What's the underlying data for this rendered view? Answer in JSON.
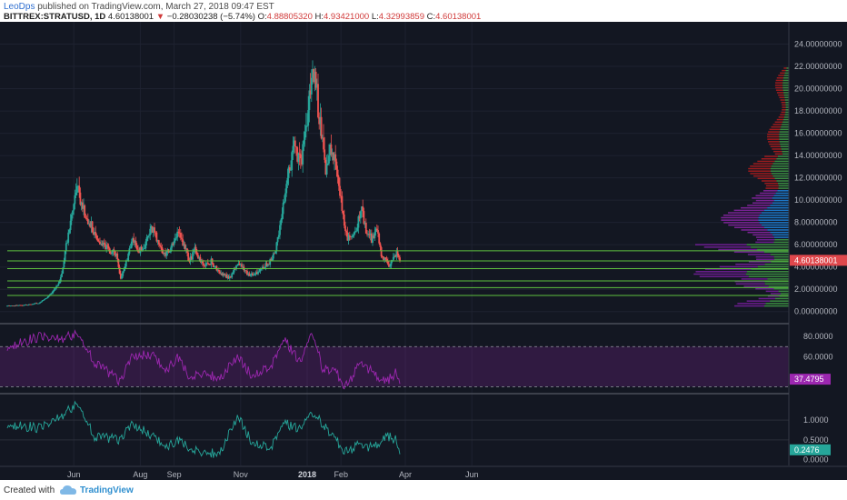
{
  "header": {
    "author": "LeoDps",
    "published": "published on TradingView.com, March 27, 2018 09:47 EST",
    "symbol": "BITTREX:STRATUSD, 1D",
    "last": "4.60138001",
    "arrow": "▼",
    "change": "−0.28030238 (−5.74%)",
    "o_label": "O:",
    "o": "4.88805320",
    "h_label": "H:",
    "h": "4.93421000",
    "l_label": "L:",
    "l": "4.32993859",
    "c_label": "C:",
    "c": "4.60138001"
  },
  "footer": {
    "created_with": "Created with",
    "brand": "TradingView"
  },
  "colors": {
    "background": "#131722",
    "up": "#26a69a",
    "down": "#ef5350",
    "levels": "#5ec13f",
    "rsi": "#9c27b0",
    "osc": "#26a69a",
    "price_tag": "#e0474c"
  },
  "chart_data": [
    {
      "type": "candlestick",
      "title": "BITTREX:STRATUSD, 1D",
      "x_ticks": [
        "Jun",
        "Aug",
        "Sep",
        "Nov",
        "2018",
        "Feb",
        "Apr",
        "Jun"
      ],
      "y_ticks": [
        "24.00000000",
        "22.00000000",
        "20.00000000",
        "18.00000000",
        "16.00000000",
        "14.00000000",
        "12.00000000",
        "10.00000000",
        "8.00000000",
        "6.00000000",
        "4.00000000",
        "2.00000000",
        "0.00000000"
      ],
      "ylim": [
        -1,
        26
      ],
      "last_price_label": "4.60138001",
      "horizontal_levels": [
        5.45,
        4.55,
        3.85,
        2.75,
        2.15,
        1.45
      ],
      "close_points": [
        [
          "2017-04-01",
          0.5
        ],
        [
          "2017-04-20",
          0.6
        ],
        [
          "2017-05-01",
          0.8
        ],
        [
          "2017-05-10",
          1.5
        ],
        [
          "2017-05-15",
          2.0
        ],
        [
          "2017-05-20",
          3.0
        ],
        [
          "2017-05-26",
          6.5
        ],
        [
          "2017-06-01",
          9.5
        ],
        [
          "2017-06-04",
          11.5
        ],
        [
          "2017-06-08",
          9.5
        ],
        [
          "2017-06-13",
          8.5
        ],
        [
          "2017-06-20",
          7.0
        ],
        [
          "2017-06-28",
          6.0
        ],
        [
          "2017-07-04",
          5.5
        ],
        [
          "2017-07-10",
          5.0
        ],
        [
          "2017-07-14",
          3.0
        ],
        [
          "2017-07-18",
          4.0
        ],
        [
          "2017-07-24",
          6.5
        ],
        [
          "2017-07-30",
          5.5
        ],
        [
          "2017-08-05",
          6.0
        ],
        [
          "2017-08-12",
          7.5
        ],
        [
          "2017-08-18",
          6.0
        ],
        [
          "2017-08-24",
          5.0
        ],
        [
          "2017-08-30",
          6.0
        ],
        [
          "2017-09-04",
          7.0
        ],
        [
          "2017-09-08",
          6.5
        ],
        [
          "2017-09-15",
          4.5
        ],
        [
          "2017-09-20",
          5.5
        ],
        [
          "2017-09-28",
          4.0
        ],
        [
          "2017-10-05",
          4.5
        ],
        [
          "2017-10-12",
          3.5
        ],
        [
          "2017-10-22",
          3.0
        ],
        [
          "2017-10-30",
          4.5
        ],
        [
          "2017-11-05",
          3.5
        ],
        [
          "2017-11-12",
          3.3
        ],
        [
          "2017-11-20",
          3.8
        ],
        [
          "2017-11-28",
          4.5
        ],
        [
          "2017-12-04",
          6.0
        ],
        [
          "2017-12-08",
          8.0
        ],
        [
          "2017-12-12",
          11.0
        ],
        [
          "2017-12-16",
          13.0
        ],
        [
          "2017-12-20",
          15.0
        ],
        [
          "2017-12-26",
          13.0
        ],
        [
          "2017-12-30",
          16.0
        ],
        [
          "2018-01-03",
          19.0
        ],
        [
          "2018-01-06",
          22.0
        ],
        [
          "2018-01-09",
          21.0
        ],
        [
          "2018-01-12",
          17.0
        ],
        [
          "2018-01-15",
          16.0
        ],
        [
          "2018-01-18",
          13.0
        ],
        [
          "2018-01-22",
          15.0
        ],
        [
          "2018-01-27",
          13.0
        ],
        [
          "2018-02-01",
          10.0
        ],
        [
          "2018-02-05",
          7.0
        ],
        [
          "2018-02-09",
          6.5
        ],
        [
          "2018-02-15",
          7.5
        ],
        [
          "2018-02-20",
          9.0
        ],
        [
          "2018-02-25",
          7.0
        ],
        [
          "2018-03-01",
          6.5
        ],
        [
          "2018-03-06",
          7.5
        ],
        [
          "2018-03-10",
          5.0
        ],
        [
          "2018-03-15",
          4.5
        ],
        [
          "2018-03-18",
          4.0
        ],
        [
          "2018-03-21",
          5.0
        ],
        [
          "2018-03-24",
          5.2
        ],
        [
          "2018-03-27",
          4.6
        ]
      ]
    },
    {
      "type": "line",
      "title": "RSI",
      "y_ticks": [
        "80.0000",
        "60.0000"
      ],
      "ylim": [
        24,
        92
      ],
      "band": [
        30,
        70
      ],
      "last_value_label": "37.4795",
      "points": [
        [
          "2017-04-01",
          70
        ],
        [
          "2017-05-01",
          80
        ],
        [
          "2017-05-20",
          78
        ],
        [
          "2017-06-04",
          82
        ],
        [
          "2017-06-20",
          55
        ],
        [
          "2017-07-14",
          35
        ],
        [
          "2017-07-24",
          60
        ],
        [
          "2017-08-12",
          62
        ],
        [
          "2017-08-24",
          45
        ],
        [
          "2017-09-04",
          60
        ],
        [
          "2017-09-15",
          40
        ],
        [
          "2017-09-28",
          45
        ],
        [
          "2017-10-12",
          38
        ],
        [
          "2017-10-30",
          60
        ],
        [
          "2017-11-12",
          40
        ],
        [
          "2017-11-28",
          50
        ],
        [
          "2017-12-12",
          75
        ],
        [
          "2017-12-26",
          55
        ],
        [
          "2018-01-06",
          85
        ],
        [
          "2018-01-15",
          48
        ],
        [
          "2018-01-27",
          45
        ],
        [
          "2018-02-05",
          30
        ],
        [
          "2018-02-20",
          55
        ],
        [
          "2018-03-01",
          45
        ],
        [
          "2018-03-15",
          35
        ],
        [
          "2018-03-24",
          45
        ],
        [
          "2018-03-27",
          37.48
        ]
      ]
    },
    {
      "type": "line",
      "title": "Oscillator",
      "y_ticks": [
        "1.0000",
        "0.5000",
        "0.0000"
      ],
      "ylim": [
        -0.15,
        1.65
      ],
      "last_value_label": "0.2476",
      "points": [
        [
          "2017-04-01",
          0.9
        ],
        [
          "2017-05-01",
          0.8
        ],
        [
          "2017-05-20",
          1.1
        ],
        [
          "2017-06-04",
          1.4
        ],
        [
          "2017-06-20",
          0.6
        ],
        [
          "2017-07-14",
          0.5
        ],
        [
          "2017-07-24",
          0.9
        ],
        [
          "2017-08-12",
          0.6
        ],
        [
          "2017-08-24",
          0.3
        ],
        [
          "2017-09-04",
          0.5
        ],
        [
          "2017-09-15",
          0.3
        ],
        [
          "2017-09-28",
          0.2
        ],
        [
          "2017-10-12",
          0.15
        ],
        [
          "2017-10-30",
          1.1
        ],
        [
          "2017-11-12",
          0.4
        ],
        [
          "2017-11-28",
          0.3
        ],
        [
          "2017-12-12",
          0.9
        ],
        [
          "2017-12-26",
          0.8
        ],
        [
          "2018-01-06",
          1.2
        ],
        [
          "2018-01-15",
          0.9
        ],
        [
          "2018-01-27",
          0.5
        ],
        [
          "2018-02-05",
          0.2
        ],
        [
          "2018-02-20",
          0.4
        ],
        [
          "2018-03-01",
          0.3
        ],
        [
          "2018-03-15",
          0.6
        ],
        [
          "2018-03-24",
          0.5
        ],
        [
          "2018-03-27",
          0.25
        ]
      ]
    }
  ]
}
